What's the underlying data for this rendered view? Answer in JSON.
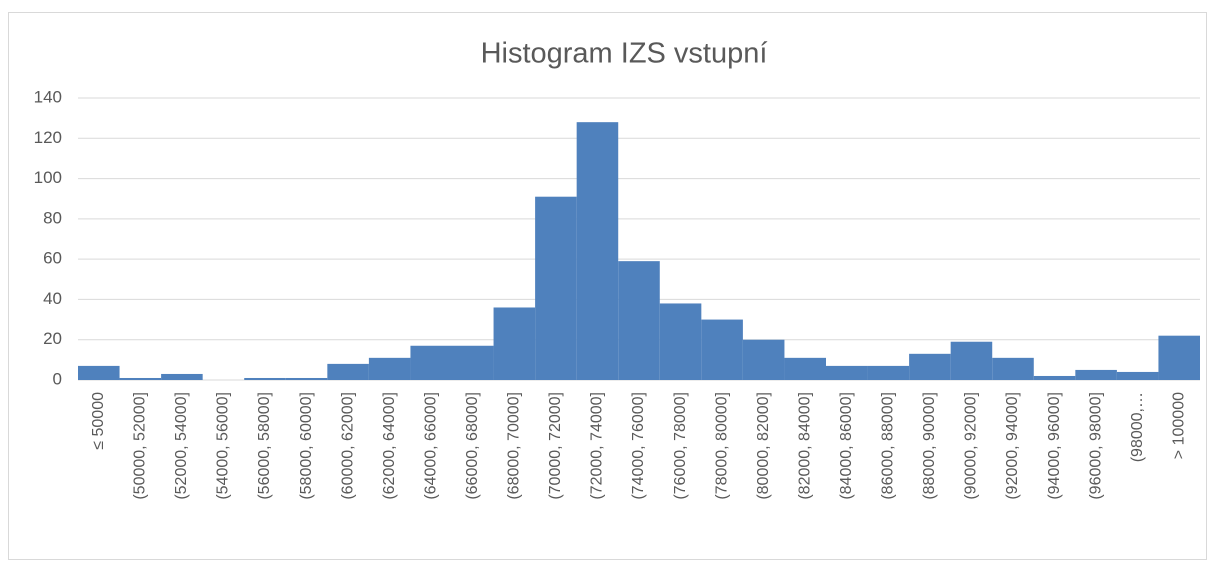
{
  "chart_data": {
    "type": "bar",
    "title": "Histogram IZS vstupní",
    "categories": [
      "≤ 50000",
      "(50000, 52000]",
      "(52000, 54000]",
      "(54000, 56000]",
      "(56000, 58000]",
      "(58000, 60000]",
      "(60000, 62000]",
      "(62000, 64000]",
      "(64000, 66000]",
      "(66000, 68000]",
      "(68000, 70000]",
      "(70000, 72000]",
      "(72000, 74000]",
      "(74000, 76000]",
      "(76000, 78000]",
      "(78000, 80000]",
      "(80000, 82000]",
      "(82000, 84000]",
      "(84000, 86000]",
      "(86000, 88000]",
      "(88000, 90000]",
      "(90000, 92000]",
      "(92000, 94000]",
      "(94000, 96000]",
      "(96000, 98000]",
      "(98000,…",
      "> 100000"
    ],
    "values": [
      7,
      1,
      3,
      0,
      1,
      1,
      8,
      11,
      17,
      17,
      36,
      91,
      128,
      59,
      38,
      30,
      20,
      11,
      7,
      7,
      13,
      19,
      11,
      2,
      5,
      4,
      22
    ],
    "color": "#4f81bd",
    "ylim": [
      0,
      140
    ],
    "yticks": [
      0,
      20,
      40,
      60,
      80,
      100,
      120,
      140
    ],
    "grid": true
  }
}
